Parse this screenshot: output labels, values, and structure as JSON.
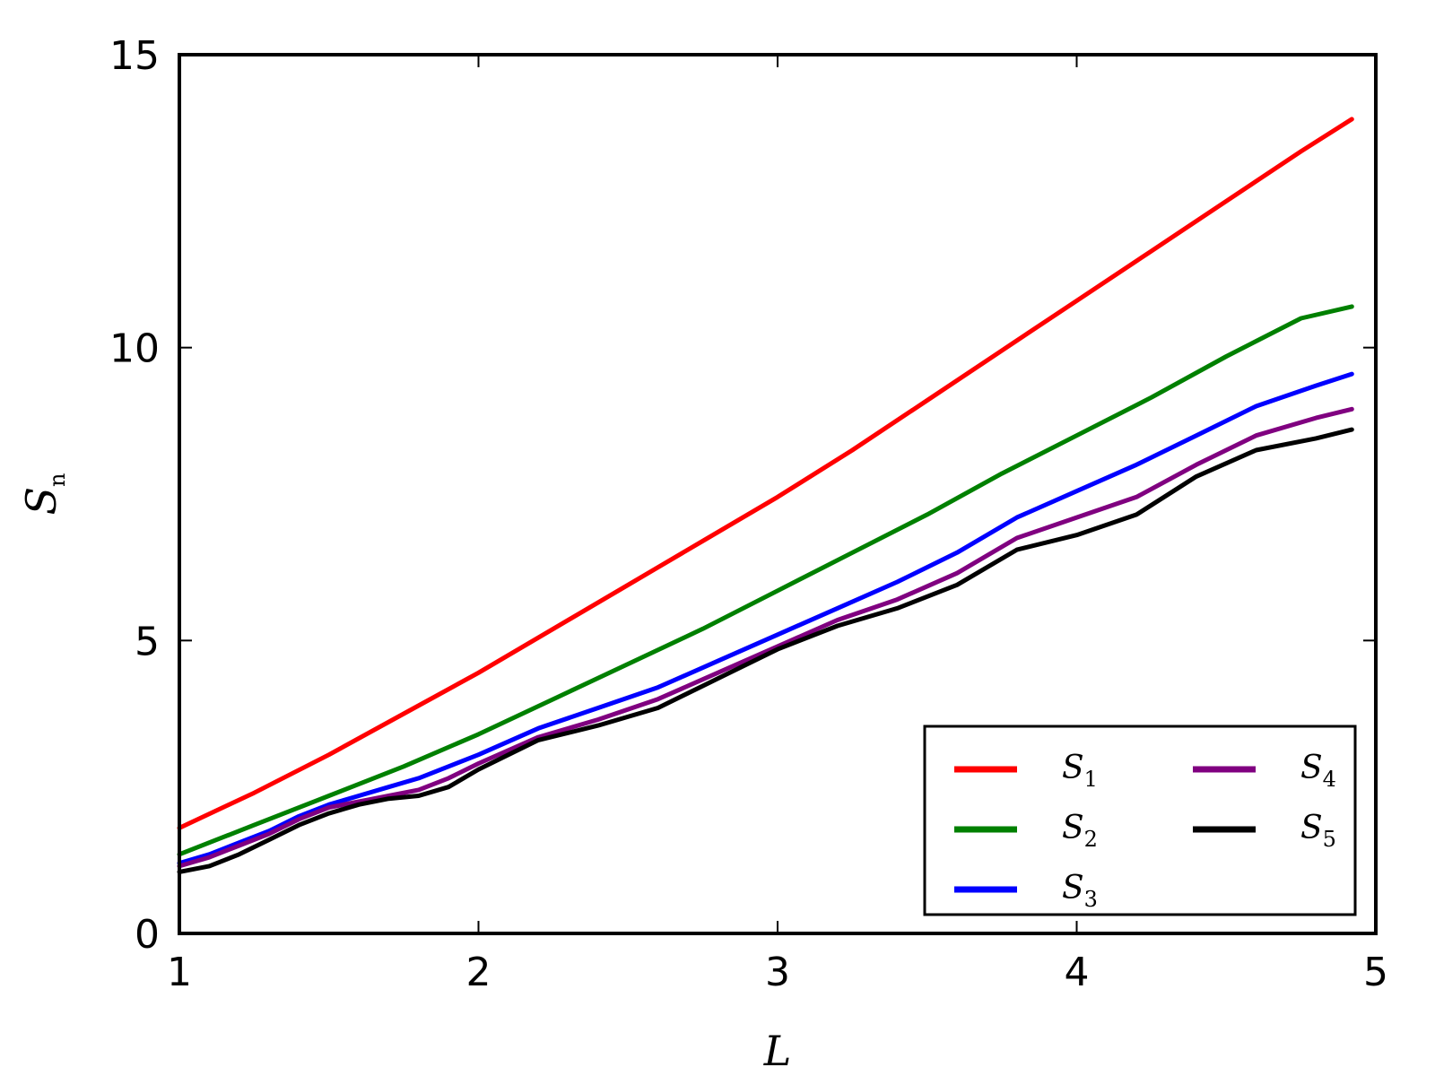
{
  "chart_data": {
    "type": "line",
    "xlabel": "L",
    "ylabel": "S",
    "ylabel_sub": "n",
    "xlim": [
      1,
      5
    ],
    "ylim": [
      0,
      15
    ],
    "xticks": [
      "1",
      "2",
      "3",
      "4",
      "5"
    ],
    "yticks": [
      "0",
      "5",
      "10",
      "15"
    ],
    "grid": false,
    "legend_position": "bottom-right",
    "legend_columns": 2,
    "series": [
      {
        "name": "S",
        "sub": "1",
        "color": "#ff0000",
        "x": [
          1.0,
          1.25,
          1.5,
          1.75,
          2.0,
          2.25,
          2.5,
          2.75,
          3.0,
          3.25,
          3.5,
          3.75,
          4.0,
          4.25,
          4.5,
          4.75,
          4.92
        ],
        "y": [
          1.8,
          2.4,
          3.05,
          3.75,
          4.45,
          5.2,
          5.95,
          6.7,
          7.45,
          8.25,
          9.1,
          9.95,
          10.8,
          11.65,
          12.5,
          13.35,
          13.9
        ]
      },
      {
        "name": "S",
        "sub": "2",
        "color": "#008000",
        "x": [
          1.0,
          1.25,
          1.5,
          1.75,
          2.0,
          2.25,
          2.5,
          2.75,
          3.0,
          3.25,
          3.5,
          3.75,
          4.0,
          4.25,
          4.5,
          4.75,
          4.92
        ],
        "y": [
          1.35,
          1.85,
          2.35,
          2.85,
          3.4,
          4.0,
          4.6,
          5.2,
          5.85,
          6.5,
          7.15,
          7.85,
          8.5,
          9.15,
          9.85,
          10.5,
          10.7
        ]
      },
      {
        "name": "S",
        "sub": "3",
        "color": "#0000ff",
        "x": [
          1.0,
          1.1,
          1.2,
          1.3,
          1.4,
          1.5,
          1.6,
          1.7,
          1.8,
          1.9,
          2.0,
          2.2,
          2.4,
          2.6,
          2.8,
          3.0,
          3.2,
          3.4,
          3.6,
          3.8,
          4.0,
          4.2,
          4.4,
          4.6,
          4.8,
          4.92
        ],
        "y": [
          1.2,
          1.35,
          1.55,
          1.75,
          2.0,
          2.2,
          2.35,
          2.5,
          2.65,
          2.85,
          3.05,
          3.5,
          3.85,
          4.2,
          4.65,
          5.1,
          5.55,
          6.0,
          6.5,
          7.1,
          7.55,
          8.0,
          8.5,
          9.0,
          9.35,
          9.55
        ]
      },
      {
        "name": "S",
        "sub": "4",
        "color": "#800080",
        "x": [
          1.0,
          1.1,
          1.2,
          1.3,
          1.4,
          1.5,
          1.6,
          1.7,
          1.8,
          1.9,
          2.0,
          2.2,
          2.4,
          2.6,
          2.8,
          3.0,
          3.2,
          3.4,
          3.6,
          3.8,
          4.0,
          4.2,
          4.4,
          4.6,
          4.8,
          4.92
        ],
        "y": [
          1.15,
          1.3,
          1.5,
          1.7,
          1.95,
          2.15,
          2.25,
          2.35,
          2.45,
          2.65,
          2.9,
          3.35,
          3.65,
          4.0,
          4.45,
          4.9,
          5.35,
          5.7,
          6.15,
          6.75,
          7.1,
          7.45,
          8.0,
          8.5,
          8.8,
          8.95
        ]
      },
      {
        "name": "S",
        "sub": "5",
        "color": "#000000",
        "x": [
          1.0,
          1.1,
          1.2,
          1.3,
          1.4,
          1.5,
          1.6,
          1.7,
          1.8,
          1.9,
          2.0,
          2.2,
          2.4,
          2.6,
          2.8,
          3.0,
          3.2,
          3.4,
          3.6,
          3.8,
          4.0,
          4.2,
          4.4,
          4.6,
          4.8,
          4.92
        ],
        "y": [
          1.05,
          1.15,
          1.35,
          1.6,
          1.85,
          2.05,
          2.2,
          2.3,
          2.35,
          2.5,
          2.8,
          3.3,
          3.55,
          3.85,
          4.35,
          4.85,
          5.25,
          5.55,
          5.95,
          6.55,
          6.8,
          7.15,
          7.8,
          8.25,
          8.45,
          8.6
        ]
      }
    ]
  }
}
